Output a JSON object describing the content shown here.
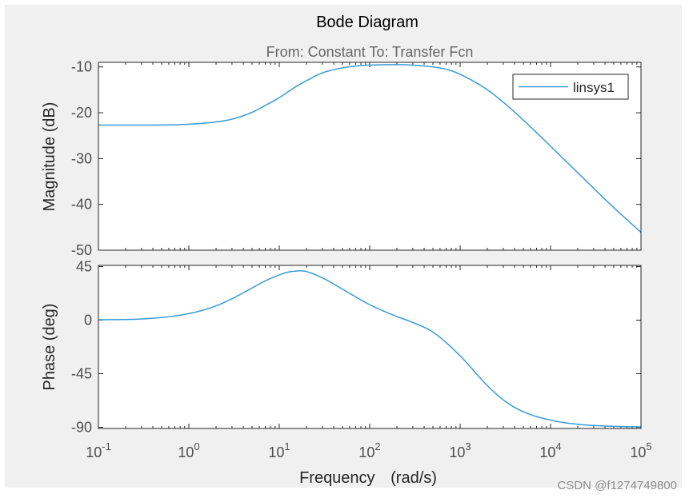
{
  "chart_data": [
    {
      "type": "line",
      "title": "Bode Diagram",
      "subtitle": "From: Constant  To: Transfer Fcn",
      "ylabel": "Magnitude (dB)",
      "xscale": "log",
      "xlim": [
        0.1,
        100000
      ],
      "ylim": [
        -50,
        -9
      ],
      "yticks": [
        -10,
        -20,
        -30,
        -40,
        -50
      ],
      "yticklabels": [
        "-10",
        "-20",
        "-30",
        "-40",
        "-50"
      ],
      "legend": {
        "entries": [
          "linsys1"
        ],
        "placement": "top-right"
      },
      "series": [
        {
          "name": "linsys1",
          "color": "#3a9ad6",
          "x": [
            0.1,
            0.3,
            1,
            2,
            3,
            5,
            7,
            10,
            15,
            20,
            30,
            50,
            70,
            100,
            200,
            300,
            500,
            700,
            1000,
            2000,
            3000,
            5000,
            10000,
            20000,
            50000,
            100000
          ],
          "y": [
            -22.7,
            -22.7,
            -22.5,
            -22.0,
            -21.4,
            -19.9,
            -18.4,
            -16.7,
            -14.4,
            -13.0,
            -11.3,
            -10.2,
            -9.8,
            -9.6,
            -9.5,
            -9.6,
            -10.0,
            -10.5,
            -11.6,
            -15.0,
            -17.7,
            -21.6,
            -27.3,
            -33.1,
            -40.7,
            -46.1
          ]
        }
      ]
    },
    {
      "type": "line",
      "xlabel_main": "Frequency",
      "xlabel_units": "(rad/s)",
      "ylabel": "Phase (deg)",
      "xscale": "log",
      "xlim": [
        0.1,
        100000
      ],
      "ylim": [
        -91,
        46
      ],
      "yticks": [
        45,
        0,
        -45,
        -90
      ],
      "yticklabels": [
        "45",
        "0",
        "-45",
        "-90"
      ],
      "xticks": [
        0.1,
        1,
        10,
        100,
        1000,
        10000,
        100000
      ],
      "xtick_bases": [
        "10",
        "10",
        "10",
        "10",
        "10",
        "10",
        "10"
      ],
      "xtick_exponents": [
        "-1",
        "0",
        "1",
        "2",
        "3",
        "4",
        "5"
      ],
      "series": [
        {
          "name": "linsys1",
          "color": "#3a9ad6",
          "x": [
            0.1,
            0.3,
            1,
            2,
            3,
            5,
            7,
            10,
            12,
            15,
            17,
            20,
            30,
            50,
            100,
            200,
            300,
            500,
            1000,
            2000,
            3000,
            5000,
            10000,
            20000,
            50000,
            100000
          ],
          "y": [
            0.3,
            1.0,
            5.5,
            12,
            18,
            27,
            33,
            38,
            40,
            41.2,
            41.5,
            40.8,
            35.5,
            26,
            13,
            3,
            -2,
            -10,
            -30,
            -55,
            -67,
            -77,
            -84,
            -87.5,
            -89.2,
            -89.7
          ]
        }
      ]
    }
  ],
  "watermark": "CSDN @f1274749800"
}
